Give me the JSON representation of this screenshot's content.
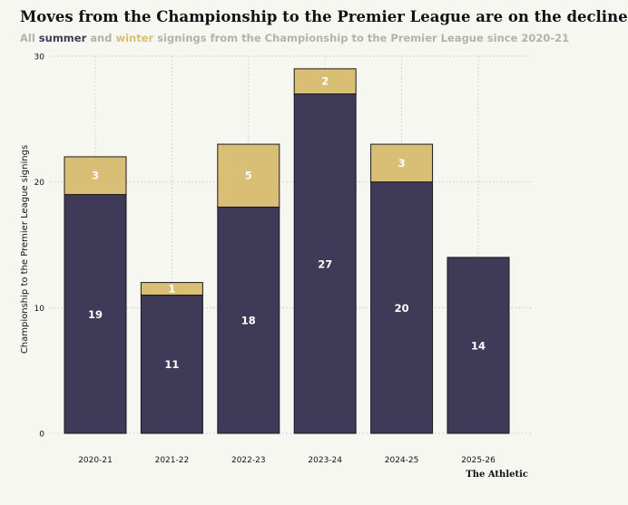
{
  "title": "Moves from the Championship to the Premier League are on the decline",
  "subtitle": {
    "prefix": "All ",
    "summer": "summer",
    "middle": " and ",
    "winter": "winter",
    "suffix": " signings from the Championship to the Premier League since 2020-21"
  },
  "brand": "The Athletic",
  "colors": {
    "summer": "#3f3a58",
    "winter": "#d9bf75",
    "grid": "#cfcfc8",
    "text": "#121212"
  },
  "chart_data": {
    "type": "bar",
    "stacked": true,
    "categories": [
      "2020-21",
      "2021-22",
      "2022-23",
      "2023-24",
      "2024-25",
      "2025-26"
    ],
    "series": [
      {
        "name": "summer",
        "values": [
          19,
          11,
          18,
          27,
          20,
          14
        ]
      },
      {
        "name": "winter",
        "values": [
          3,
          1,
          5,
          2,
          3,
          0
        ]
      }
    ],
    "ylabel": "Championship to the Premier League signings",
    "ylim": [
      0,
      30
    ],
    "yticks": [
      0,
      10,
      20,
      30
    ],
    "grid": true
  }
}
